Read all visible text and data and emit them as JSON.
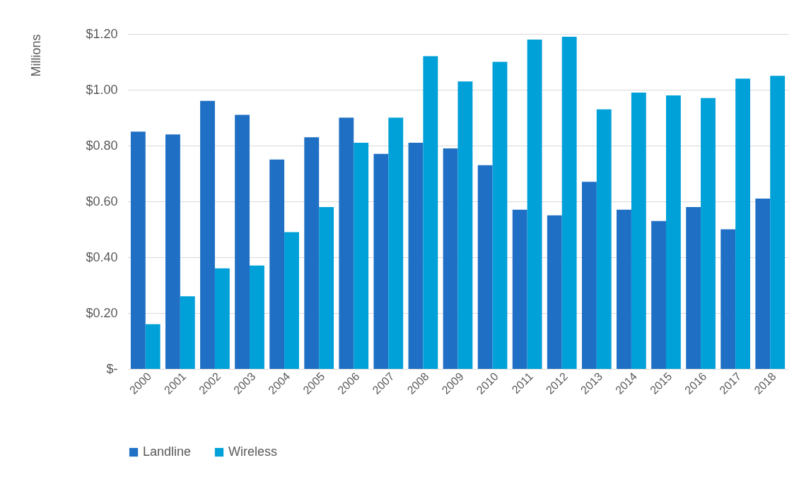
{
  "chart_data": {
    "type": "bar",
    "ylabel": "Millions",
    "categories": [
      "2000",
      "2001",
      "2002",
      "2003",
      "2004",
      "2005",
      "2006",
      "2007",
      "2008",
      "2009",
      "2010",
      "2011",
      "2012",
      "2013",
      "2014",
      "2015",
      "2016",
      "2017",
      "2018"
    ],
    "series": [
      {
        "name": "Landline",
        "color": "#1f6fc5",
        "values": [
          0.85,
          0.84,
          0.96,
          0.91,
          0.75,
          0.83,
          0.9,
          0.77,
          0.81,
          0.79,
          0.73,
          0.57,
          0.55,
          0.67,
          0.57,
          0.53,
          0.58,
          0.5,
          0.61
        ]
      },
      {
        "name": "Wireless",
        "color": "#00a0d8",
        "values": [
          0.16,
          0.26,
          0.36,
          0.37,
          0.49,
          0.58,
          0.81,
          0.9,
          1.12,
          1.03,
          1.1,
          1.18,
          1.19,
          0.93,
          0.99,
          0.98,
          0.97,
          1.04,
          1.05
        ]
      }
    ],
    "ylim": [
      0,
      1.2
    ],
    "yticks": [
      {
        "value": 0,
        "label": "$-"
      },
      {
        "value": 0.2,
        "label": "$0.20"
      },
      {
        "value": 0.4,
        "label": "$0.40"
      },
      {
        "value": 0.6,
        "label": "$0.60"
      },
      {
        "value": 0.8,
        "label": "$0.80"
      },
      {
        "value": 1.0,
        "label": "$1.00"
      },
      {
        "value": 1.2,
        "label": "$1.20"
      }
    ],
    "grid": "y",
    "legend": "bottom"
  }
}
